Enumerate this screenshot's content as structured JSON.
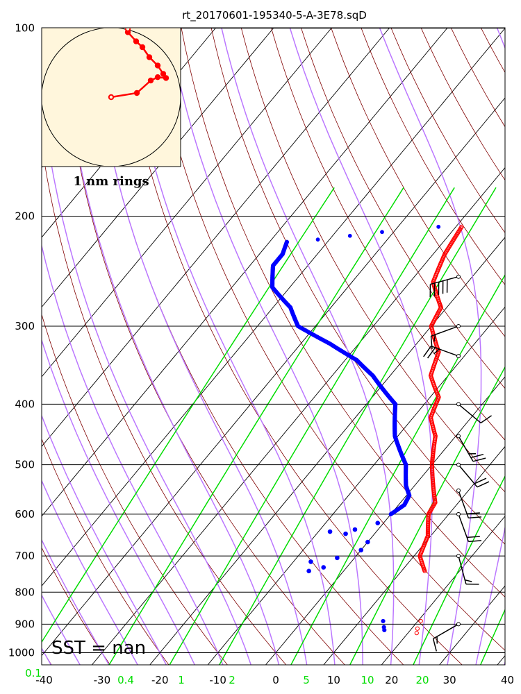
{
  "chart_data": {
    "type": "skew-t",
    "title": "rt_20170601-195340-5-A-3E78.sqD",
    "x_axis": {
      "label": "",
      "ticks": [
        -40,
        -30,
        -20,
        -10,
        0,
        10,
        20,
        30,
        40
      ],
      "range": [
        -40,
        40
      ]
    },
    "y_axis": {
      "label": "",
      "scale": "log",
      "ticks": [
        100,
        200,
        300,
        400,
        500,
        600,
        700,
        800,
        900,
        1000
      ],
      "range": [
        100,
        1050
      ]
    },
    "mixing_ratio_labels": [
      "0.1",
      "0.4",
      "1",
      "2",
      "5",
      "10",
      "20"
    ],
    "sst_text": "SST =  nan",
    "hodograph_label": "1 nm rings",
    "colors": {
      "temperature": "#ff0000",
      "dewpoint": "#0000ff",
      "dry_adiabat": "#800000",
      "moist_adiabat": "#bb77ff",
      "mixing_ratio": "#00dd00",
      "isotherm": "#000000",
      "hodograph_background": "#fff6dc",
      "hodograph_trace": "#ff0000"
    },
    "temperature": [
      {
        "p": 208,
        "t": -29
      },
      {
        "p": 230,
        "t": -28
      },
      {
        "p": 255,
        "t": -26
      },
      {
        "p": 280,
        "t": -21
      },
      {
        "p": 300,
        "t": -20
      },
      {
        "p": 330,
        "t": -15
      },
      {
        "p": 360,
        "t": -13
      },
      {
        "p": 390,
        "t": -8.5
      },
      {
        "p": 420,
        "t": -7
      },
      {
        "p": 450,
        "t": -3.5
      },
      {
        "p": 500,
        "t": 0
      },
      {
        "p": 550,
        "t": 4
      },
      {
        "p": 575,
        "t": 6
      },
      {
        "p": 600,
        "t": 6.5
      },
      {
        "p": 650,
        "t": 9.5
      },
      {
        "p": 700,
        "t": 11
      },
      {
        "p": 740,
        "t": 14
      }
    ],
    "temperature_surface": [
      {
        "p": 890,
        "t": 20.5
      },
      {
        "p": 915,
        "t": 21
      },
      {
        "p": 930,
        "t": 21.5
      }
    ],
    "dewpoint": [
      {
        "p": 220,
        "t": -57
      },
      {
        "p": 230,
        "t": -56
      },
      {
        "p": 240,
        "t": -56
      },
      {
        "p": 260,
        "t": -53
      },
      {
        "p": 280,
        "t": -47
      },
      {
        "p": 300,
        "t": -43
      },
      {
        "p": 320,
        "t": -35
      },
      {
        "p": 340,
        "t": -28
      },
      {
        "p": 360,
        "t": -23
      },
      {
        "p": 380,
        "t": -19
      },
      {
        "p": 400,
        "t": -15
      },
      {
        "p": 450,
        "t": -10.5
      },
      {
        "p": 500,
        "t": -4.5
      },
      {
        "p": 540,
        "t": -1.5
      },
      {
        "p": 560,
        "t": 0.5
      },
      {
        "p": 580,
        "t": 1
      },
      {
        "p": 600,
        "t": 0
      }
    ],
    "dewpoint_upper_fragment": [
      {
        "p": 208,
        "t": -33
      },
      {
        "p": 212,
        "t": -42
      },
      {
        "p": 218,
        "t": -52
      },
      {
        "p": 220,
        "t": -57
      }
    ],
    "dewpoint_scatter": [
      {
        "p": 620,
        "t": -1
      },
      {
        "p": 635,
        "t": -4
      },
      {
        "p": 640,
        "t": -8
      },
      {
        "p": 645,
        "t": -5
      },
      {
        "p": 665,
        "t": 0
      },
      {
        "p": 685,
        "t": 0
      },
      {
        "p": 705,
        "t": -3
      },
      {
        "p": 715,
        "t": -7
      },
      {
        "p": 730,
        "t": -4
      },
      {
        "p": 740,
        "t": -6
      }
    ],
    "dewpoint_surface": [
      {
        "p": 890,
        "t": 14
      },
      {
        "p": 910,
        "t": 15
      },
      {
        "p": 920,
        "t": 15.5
      }
    ],
    "wind_barbs": [
      {
        "p": 250,
        "dir": 255,
        "spd": 50
      },
      {
        "p": 300,
        "dir": 250,
        "spd": 15
      },
      {
        "p": 335,
        "dir": 290,
        "spd": 25
      },
      {
        "p": 400,
        "dir": 130,
        "spd": 10
      },
      {
        "p": 450,
        "dir": 150,
        "spd": 25
      },
      {
        "p": 500,
        "dir": 140,
        "spd": 20
      },
      {
        "p": 550,
        "dir": 160,
        "spd": 20
      },
      {
        "p": 600,
        "dir": 160,
        "spd": 20
      },
      {
        "p": 700,
        "dir": 165,
        "spd": 15
      },
      {
        "p": 900,
        "dir": 240,
        "spd": 15
      }
    ],
    "hodograph_points": [
      [
        0.0,
        0.0
      ],
      [
        0.37,
        0.05
      ],
      [
        0.57,
        0.2
      ],
      [
        0.67,
        0.24
      ],
      [
        0.79,
        0.23
      ],
      [
        0.75,
        0.28
      ],
      [
        0.67,
        0.38
      ],
      [
        0.55,
        0.48
      ],
      [
        0.45,
        0.6
      ],
      [
        0.36,
        0.67
      ],
      [
        0.24,
        0.78
      ],
      [
        0.24,
        0.82
      ]
    ]
  }
}
